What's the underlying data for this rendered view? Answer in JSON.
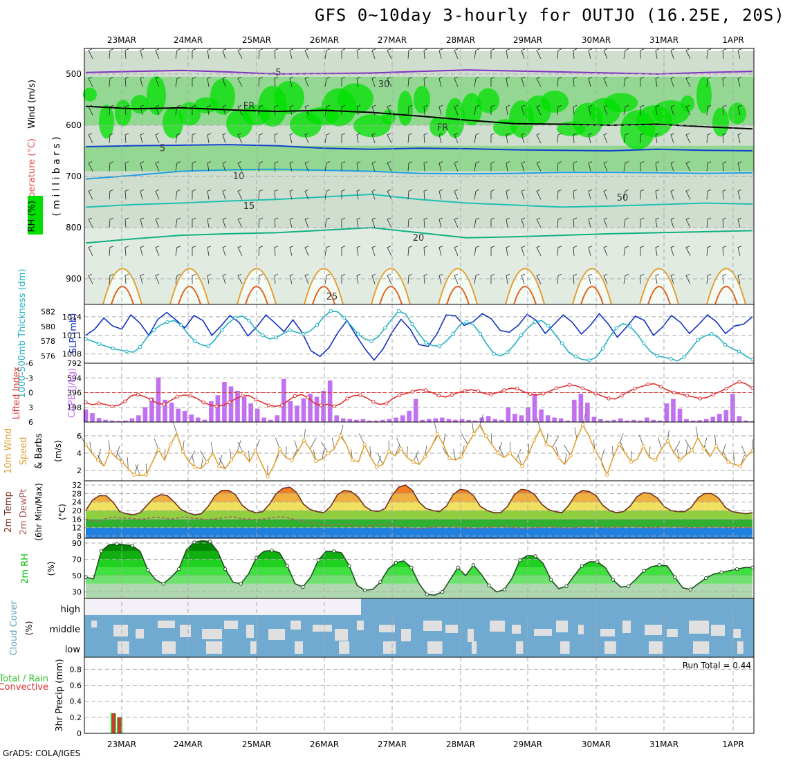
{
  "title": "GFS 0~10day 3-hourly for OUTJO (16.25E, 20S)",
  "credit": "GrADS: COLA/IGES",
  "dates": [
    "23MAR",
    "24MAR",
    "25MAR",
    "26MAR",
    "27MAR",
    "28MAR",
    "29MAR",
    "30MAR",
    "31MAR",
    "1APR"
  ],
  "colors": {
    "grid": "#aaaaaa",
    "rh_dark": "#00e000",
    "rh_mid": "#80d080",
    "rh_light": "#c8d8c8",
    "slp": "#1030c0",
    "thick": "#20b0c0",
    "li": "#e03030",
    "cape": "#c070f0",
    "wind": "#e0a030",
    "temp": "#703020",
    "dew": "#b06060",
    "rh2m": "#00c000",
    "cloud": "#70aad0",
    "cloud_gap": "#e0e0e0",
    "precip_total": "#30c030",
    "precip_conv": "#e03030"
  },
  "chart_data": [
    {
      "type": "contour",
      "panel": "upper-air",
      "ylabel_parts": [
        "RH (%)",
        "Temperature (°C)",
        "Wind (m/s)"
      ],
      "yaxis_label": "( m i l l i b a r s )",
      "yticks": [
        500,
        600,
        700,
        800,
        900
      ],
      "ylim": [
        450,
        950
      ],
      "isotherm_labels": [
        {
          "text": "-5",
          "p": 497
        },
        {
          "text": "FR",
          "p": 563
        },
        {
          "text": "FR",
          "p": 605
        },
        {
          "text": "5",
          "p": 645
        },
        {
          "text": "10",
          "p": 700
        },
        {
          "text": "15",
          "p": 758
        },
        {
          "text": "20",
          "p": 820
        },
        {
          "text": "25",
          "p": 935
        },
        {
          "text": "30",
          "p": 520
        },
        {
          "text": "50",
          "p": 742
        }
      ],
      "isotherms": [
        {
          "level": "-5",
          "color": "#8030c0",
          "p": [
            497,
            495,
            493,
            496,
            500,
            499,
            498,
            495,
            492,
            494,
            496,
            498,
            500,
            497,
            495
          ]
        },
        {
          "level": "FR",
          "color": "#000000",
          "p": [
            563,
            568,
            566,
            570,
            573,
            571,
            575,
            582,
            590,
            597,
            598,
            600,
            598,
            603,
            607
          ]
        },
        {
          "level": "5",
          "color": "#1040d0",
          "p": [
            642,
            640,
            639,
            638,
            640,
            645,
            647,
            645,
            646,
            648,
            649,
            650,
            647,
            649,
            650
          ]
        },
        {
          "level": "10",
          "color": "#20a0e0",
          "p": [
            705,
            698,
            690,
            687,
            686,
            688,
            690,
            694,
            695,
            694,
            692,
            692,
            693,
            694,
            693
          ]
        },
        {
          "level": "15",
          "color": "#20c0b0",
          "p": [
            760,
            755,
            752,
            748,
            745,
            740,
            735,
            745,
            752,
            756,
            760,
            758,
            755,
            752,
            754
          ]
        },
        {
          "level": "20",
          "color": "#10b080",
          "p": [
            830,
            822,
            815,
            812,
            810,
            805,
            800,
            810,
            820,
            818,
            815,
            812,
            810,
            808,
            806
          ]
        }
      ]
    },
    {
      "type": "line",
      "panel": "slp-thickness",
      "ylabel_left": "1000-500mb Thickness (dm)",
      "ylabel_right": "SLP (mb)",
      "yticks_left": [
        576,
        578,
        580,
        582
      ],
      "yticks_right": [
        1008,
        1011,
        1014
      ],
      "series": [
        {
          "axis": "right",
          "ylim": [
            1006.5,
            1016
          ],
          "values": [
            1011,
            1012,
            1013.8,
            1012.5,
            1012,
            1014.3,
            1013,
            1011,
            1013.6,
            1014.7,
            1013.5,
            1012.2,
            1014.2,
            1013.4,
            1011,
            1012.5,
            1014.2,
            1013.1,
            1010.9,
            1012.4,
            1014.3,
            1013,
            1011.6,
            1013.5,
            1011.5,
            1008.5,
            1007.6,
            1009,
            1011.5,
            1013.4,
            1011,
            1008.8,
            1007,
            1008.8,
            1011.5,
            1013.6,
            1012,
            1009.5,
            1009.2,
            1011.3,
            1014.3,
            1014.2,
            1012.6,
            1013.2,
            1014.5,
            1013.7,
            1011.8,
            1011.5,
            1012.6,
            1014.4,
            1013.4,
            1011.3,
            1012.8,
            1014.3,
            1013.1,
            1011.2,
            1012.6,
            1014.5,
            1012.8,
            1010.7,
            1012.3,
            1014.1,
            1013.4,
            1011,
            1012.3,
            1014.2,
            1013.1,
            1011.3,
            1012.7,
            1014.3,
            1013.2,
            1011.3,
            1012.5,
            1012.8,
            1014
          ]
        },
        {
          "axis": "left",
          "ylim": [
            575,
            583
          ],
          "values": [
            578.3,
            578,
            577.6,
            577.3,
            577,
            576.8,
            576.6,
            576.5,
            577.2,
            578.5,
            579.5,
            580.2,
            580.6,
            580.8,
            580.2,
            579,
            578,
            577.5,
            577.3,
            578.2,
            579.5,
            580.5,
            581.2,
            581.4,
            580.8,
            579.6,
            578.8,
            578.3,
            578.5,
            579,
            579.5,
            579.2,
            579,
            579.4,
            580.2,
            581.3,
            582.1,
            582,
            581.2,
            580.1,
            579,
            578.3,
            578,
            578.6,
            579.8,
            581,
            582.1,
            581.7,
            580.3,
            579,
            577.8,
            577.4,
            577.3,
            578,
            579,
            580.2,
            580.6,
            580.2,
            579,
            577.5,
            576.3,
            576,
            576.5,
            577.5,
            578.8,
            579.8,
            580.6,
            580.8,
            580.1,
            578.9,
            577.7,
            576.5,
            575.9,
            575.5,
            575.4,
            575.8,
            577,
            578.6,
            579.8,
            580.4,
            580,
            579,
            577.7,
            576.6,
            576,
            575.8,
            575.6,
            575.3,
            575.9,
            577,
            578.2,
            578.7,
            579,
            578.5,
            577.5,
            577,
            576.6,
            576,
            575.5
          ]
        }
      ]
    },
    {
      "type": "bar",
      "panel": "cape-li",
      "ylabel_left": "Lifted Index",
      "ylabel_right": "CAPE (J/kg)",
      "yticks_left": [
        "-6",
        "-3",
        "0",
        "3",
        "6"
      ],
      "yticks_right": [
        198,
        396,
        594,
        792
      ],
      "cape_ylim": [
        0,
        792
      ],
      "cape": [
        170,
        120,
        55,
        30,
        20,
        15,
        20,
        50,
        90,
        200,
        330,
        600,
        300,
        260,
        180,
        150,
        100,
        60,
        30,
        280,
        360,
        540,
        480,
        420,
        340,
        250,
        180,
        60,
        30,
        90,
        580,
        280,
        220,
        320,
        380,
        340,
        420,
        560,
        90,
        50,
        40,
        30,
        40,
        20,
        20,
        30,
        40,
        60,
        90,
        150,
        310,
        30,
        40,
        50,
        60,
        40,
        30,
        40,
        30,
        20,
        60,
        80,
        40,
        30,
        200,
        110,
        90,
        200,
        380,
        170,
        90,
        60,
        50,
        20,
        300,
        380,
        260,
        70,
        40,
        20,
        30,
        50,
        20,
        30,
        20,
        60,
        30,
        20,
        250,
        310,
        180,
        40,
        20,
        25,
        40,
        70,
        110,
        160,
        380,
        80,
        20,
        10
      ],
      "li_ylim": [
        -6,
        6
      ],
      "li": [
        -2,
        -2.5,
        -2.2,
        -2.4,
        -2.8,
        -2.6,
        -1.8,
        -0.6,
        -0.4,
        -0.8,
        -1.5,
        -2.2,
        -2.4,
        -1.6,
        -0.8,
        -0.5,
        -0.6,
        -1.2,
        -2.0,
        -2.5,
        -2.8,
        -2.6,
        -2.0,
        -1.2,
        -0.6,
        -0.6,
        -1.4,
        -2.0,
        -2.6,
        -2.8,
        -2.6,
        -1.6,
        -0.7,
        -0.4,
        -1.0,
        -2.2,
        -2.6,
        -2.4,
        -2.8,
        -2.3,
        -1.2,
        -0.6,
        -0.5,
        -1.1,
        -1.9,
        -2.4,
        -2.2,
        -1.2,
        -0.5,
        -0.2,
        0.2,
        0.6,
        0.5,
        0.0,
        -0.6,
        -0.9,
        -0.5,
        0.0,
        0.4,
        0.6,
        0.3,
        -0.2,
        -0.4,
        0.0,
        0.5,
        0.9,
        0.8,
        0.2,
        -0.3,
        -0.5,
        -0.2,
        0.3,
        0.9,
        1.2,
        1.6,
        1.4,
        0.9,
        0.4,
        -0.2,
        -0.7,
        -1.2,
        -1.3,
        -0.6,
        0.2,
        0.8,
        1.2,
        1.7,
        1.8,
        1.2,
        0.5,
        0.0,
        -0.3,
        -0.6,
        -0.9,
        -1.2,
        -1.0,
        -0.4,
        0.2,
        0.8,
        1.6,
        2.2,
        1.8,
        0.9
      ]
    },
    {
      "type": "line",
      "panel": "wind10m",
      "ylabel_parts": [
        "10m Wind",
        "Speed",
        "& Barbs"
      ],
      "unit": "(m/s)",
      "yticks": [
        2,
        4,
        6
      ],
      "ylim": [
        0.8,
        7.6
      ],
      "values": [
        5,
        4,
        3.2,
        2.5,
        4.2,
        3.5,
        3,
        2.2,
        1.5,
        1.4,
        1.5,
        3,
        4.4,
        3.2,
        5,
        6.3,
        4.2,
        3,
        2.4,
        2.2,
        3,
        4,
        2.5,
        2.2,
        3.2,
        4.2,
        4,
        3,
        4.3,
        2.8,
        1.3,
        2.5,
        4.5,
        3.5,
        3.2,
        4.2,
        5.5,
        4.5,
        3.1,
        3.3,
        4,
        4.5,
        6,
        5,
        3.2,
        3,
        5,
        3.5,
        2.4,
        2.7,
        4.2,
        3.7,
        4.5,
        3.5,
        3,
        2.7,
        3.6,
        4.7,
        6.2,
        5,
        3.4,
        3.2,
        3.6,
        5,
        6.2,
        7.2,
        6,
        5,
        4,
        3.5,
        4,
        3.2,
        2.5,
        3.8,
        5.5,
        6.8,
        5,
        4.7,
        3.5,
        2.7,
        3.7,
        5.7,
        7.3,
        6,
        4.3,
        3.2,
        1.5,
        3.5,
        5,
        4,
        3,
        3.3,
        4.8,
        3.5,
        3.2,
        4.5,
        5.4,
        4.1,
        3.2,
        3.8,
        4.3,
        5.8,
        4.5,
        3.6,
        4.8,
        3.8,
        3,
        2.7,
        2.5,
        3.6,
        4.3
      ]
    },
    {
      "type": "area",
      "panel": "temp-dewpt",
      "ylabel_parts": [
        "2m Temp",
        "2m DewPt",
        "(6hr Min/Max)"
      ],
      "unit": "(°C)",
      "yticks": [
        8,
        12,
        16,
        20,
        24,
        28,
        32
      ],
      "ylim": [
        7,
        34
      ],
      "temp": [
        20,
        25,
        27,
        27,
        24,
        19.5,
        18.5,
        18,
        19,
        22.5,
        26,
        27.5,
        27,
        24,
        20.5,
        19,
        18,
        18.5,
        22,
        27,
        29.5,
        29.5,
        27.5,
        22.5,
        20,
        19,
        19.5,
        23,
        28,
        30.5,
        31,
        28.5,
        23,
        20.5,
        19.5,
        19,
        22,
        27.5,
        29.5,
        29,
        26.5,
        22,
        20,
        19.5,
        21,
        27,
        31,
        32,
        29.5,
        24,
        21,
        20,
        19.5,
        22,
        27.5,
        30,
        29.5,
        27,
        22,
        20,
        19,
        19,
        22,
        27.5,
        30,
        29.5,
        27.5,
        23,
        20.5,
        19.5,
        19,
        22.5,
        27.5,
        29.5,
        29,
        27,
        22.5,
        20,
        19,
        19.5,
        22,
        26.5,
        28.5,
        28,
        26,
        22,
        20,
        19.5,
        19.5,
        21.5,
        26,
        28,
        28,
        26,
        21.5,
        19.5,
        19,
        18.5,
        19
      ],
      "dew": [
        16,
        15,
        15,
        16.5,
        17,
        16.5,
        16.5,
        16,
        16,
        16.5,
        17,
        16.5,
        16,
        16.5,
        17,
        16.5,
        16.2,
        15.8,
        16,
        16.5,
        17,
        17,
        16.2,
        16,
        15.8,
        16,
        16.5,
        17,
        17,
        16.2,
        15.5,
        14.8,
        14,
        13.5,
        13,
        13.4,
        13.7,
        13.4,
        12.8,
        12.4,
        12.8,
        13.3,
        13.6,
        13.2,
        12.4,
        12,
        11.7,
        11.4,
        11.8,
        12.2,
        12.5,
        12.7,
        12.3,
        12,
        11.8,
        11.6,
        11.9,
        12.2,
        12.5,
        12.4,
        12.1,
        11.8,
        11.6,
        11.8,
        12.1,
        12.4,
        12.2,
        11.9,
        11.7,
        12,
        12.4,
        12.6,
        12.4,
        12,
        11.8,
        12.1,
        12.6,
        12.7,
        12.4,
        12,
        11.9,
        12.2,
        12.4,
        12.5,
        12.3,
        12,
        11.9,
        12,
        12.3,
        12.4,
        12.2,
        12,
        12,
        12.1,
        12.2
      ]
    },
    {
      "type": "area",
      "panel": "rh2m",
      "ylabel": "2m RH",
      "unit": "(%)",
      "yticks": [
        30,
        50,
        70,
        90
      ],
      "ylim": [
        22,
        96
      ],
      "values": [
        48,
        46,
        80,
        88,
        89,
        88,
        87,
        80,
        57,
        45,
        40,
        48,
        58,
        82,
        91,
        93,
        92,
        80,
        58,
        42,
        40,
        52,
        72,
        80,
        81,
        78,
        62,
        40,
        36,
        48,
        69,
        80,
        80,
        78,
        62,
        38,
        32,
        33,
        42,
        58,
        66,
        68,
        60,
        40,
        27,
        26,
        30,
        45,
        60,
        50,
        63,
        52,
        38,
        30,
        33,
        47,
        69,
        75,
        74,
        65,
        45,
        34,
        37,
        50,
        62,
        67,
        67,
        60,
        45,
        36,
        37,
        46,
        56,
        61,
        63,
        62,
        48,
        35,
        33,
        40,
        47,
        52,
        54,
        56,
        58,
        60,
        60
      ]
    },
    {
      "type": "table",
      "panel": "cloud-cover",
      "ylabel": "Cloud Cover",
      "unit": "(%)",
      "rows": [
        "high",
        "middle",
        "low"
      ]
    },
    {
      "type": "bar",
      "panel": "precip",
      "ylabel": "3hr Precip (mm)",
      "legend": [
        "Total / Rain",
        "Convective"
      ],
      "run_total": "Run Total = 0.44",
      "yticks": [
        0,
        0.2,
        0.4,
        0.6,
        0.8
      ],
      "ylim": [
        0,
        0.95
      ],
      "bars": [
        {
          "idx": 2,
          "total": 0.25,
          "convective": 0.25
        },
        {
          "idx": 3,
          "total": 0.2,
          "convective": 0.2
        }
      ]
    }
  ]
}
